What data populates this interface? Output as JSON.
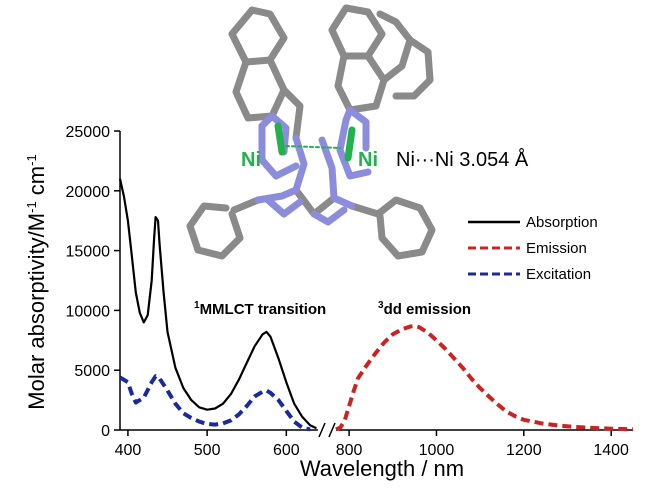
{
  "chart_data": {
    "type": "line",
    "xlabel": "Wavelength / nm",
    "ylabel": "Molar absorptivity/M",
    "ylabel_sup1": "-1",
    "ylabel_mid": " cm",
    "ylabel_sup2": "-1",
    "x_ticks_left": [
      "400",
      "500",
      "600"
    ],
    "x_ticks_right": [
      "800",
      "1000",
      "1200",
      "1400"
    ],
    "y_ticks": [
      "0",
      "5000",
      "10000",
      "15000",
      "20000",
      "25000"
    ],
    "xlim_left": [
      390,
      640
    ],
    "xlim_right": [
      770,
      1450
    ],
    "ylim": [
      0,
      25000
    ],
    "axis_break": true,
    "series": [
      {
        "name": "Absorption",
        "color": "#000000",
        "style": "solid",
        "points": [
          [
            390,
            21000
          ],
          [
            395,
            19500
          ],
          [
            400,
            17500
          ],
          [
            405,
            14500
          ],
          [
            410,
            11500
          ],
          [
            415,
            9800
          ],
          [
            420,
            9000
          ],
          [
            425,
            9600
          ],
          [
            430,
            12500
          ],
          [
            433,
            16000
          ],
          [
            435,
            17800
          ],
          [
            438,
            17500
          ],
          [
            440,
            15500
          ],
          [
            445,
            11500
          ],
          [
            450,
            8200
          ],
          [
            460,
            5200
          ],
          [
            470,
            3500
          ],
          [
            480,
            2500
          ],
          [
            490,
            1900
          ],
          [
            500,
            1700
          ],
          [
            510,
            1800
          ],
          [
            520,
            2200
          ],
          [
            530,
            3000
          ],
          [
            540,
            4200
          ],
          [
            550,
            5600
          ],
          [
            560,
            7000
          ],
          [
            570,
            8000
          ],
          [
            575,
            8200
          ],
          [
            580,
            7800
          ],
          [
            590,
            6000
          ],
          [
            600,
            4000
          ],
          [
            610,
            2200
          ],
          [
            620,
            1100
          ],
          [
            630,
            400
          ],
          [
            638,
            150
          ]
        ]
      },
      {
        "name": "Emission",
        "color": "#cc2222",
        "style": "dashed",
        "points": [
          [
            770,
            50
          ],
          [
            780,
            200
          ],
          [
            790,
            800
          ],
          [
            800,
            2000
          ],
          [
            810,
            3200
          ],
          [
            820,
            4300
          ],
          [
            840,
            5400
          ],
          [
            860,
            6400
          ],
          [
            880,
            7300
          ],
          [
            900,
            8000
          ],
          [
            920,
            8400
          ],
          [
            940,
            8650
          ],
          [
            950,
            8700
          ],
          [
            960,
            8600
          ],
          [
            980,
            8150
          ],
          [
            1000,
            7500
          ],
          [
            1020,
            6800
          ],
          [
            1040,
            6000
          ],
          [
            1060,
            5200
          ],
          [
            1080,
            4300
          ],
          [
            1100,
            3500
          ],
          [
            1120,
            2800
          ],
          [
            1140,
            2150
          ],
          [
            1160,
            1550
          ],
          [
            1180,
            1150
          ],
          [
            1200,
            850
          ],
          [
            1240,
            560
          ],
          [
            1280,
            370
          ],
          [
            1320,
            250
          ],
          [
            1360,
            170
          ],
          [
            1400,
            110
          ],
          [
            1450,
            60
          ]
        ]
      },
      {
        "name": "Excitation",
        "color": "#1a2a9a",
        "style": "dashed",
        "points": [
          [
            390,
            4400
          ],
          [
            400,
            4000
          ],
          [
            405,
            3000
          ],
          [
            410,
            2300
          ],
          [
            420,
            2700
          ],
          [
            430,
            4000
          ],
          [
            435,
            4500
          ],
          [
            440,
            4300
          ],
          [
            450,
            3300
          ],
          [
            460,
            2200
          ],
          [
            470,
            1400
          ],
          [
            480,
            1000
          ],
          [
            490,
            700
          ],
          [
            500,
            500
          ],
          [
            510,
            450
          ],
          [
            520,
            550
          ],
          [
            530,
            800
          ],
          [
            540,
            1300
          ],
          [
            550,
            2000
          ],
          [
            560,
            2800
          ],
          [
            570,
            3200
          ],
          [
            575,
            3300
          ],
          [
            580,
            3100
          ],
          [
            590,
            2500
          ],
          [
            600,
            1600
          ],
          [
            610,
            700
          ],
          [
            620,
            200
          ],
          [
            630,
            50
          ]
        ]
      }
    ],
    "legend_position": "right",
    "annotations": {
      "mmlct_sup": "1",
      "mmlct": "MMLCT transition",
      "dd_sup": "3",
      "dd": "dd emission",
      "ni_left": "Ni",
      "ni_right": "Ni",
      "ni_distance": "Ni···Ni 3.054 Å"
    }
  }
}
